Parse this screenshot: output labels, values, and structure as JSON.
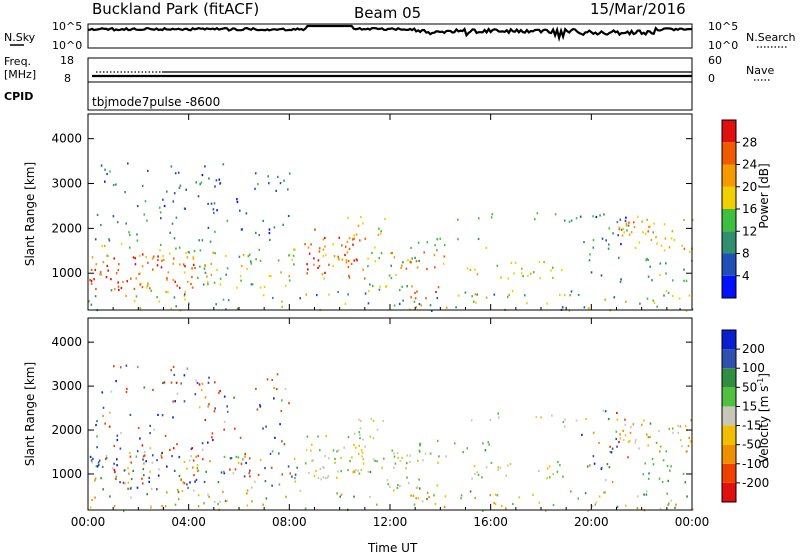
{
  "header": {
    "station": "Buckland Park (fitACF)",
    "beam": "Beam 05",
    "date": "15/Mar/2016"
  },
  "noise_panel": {
    "left_label": "N.Sky",
    "right_label": "N.Search",
    "left_ticks": [
      "10^5",
      "10^0"
    ],
    "right_ticks": [
      "10^5",
      "10^0"
    ]
  },
  "freq_panel": {
    "left_label_1": "Freq.",
    "left_label_2": "[MHz]",
    "right_label": "Nave",
    "left_ticks": [
      "18",
      "8"
    ],
    "right_ticks": [
      "60",
      "0"
    ]
  },
  "cpid": {
    "label": "CPID",
    "value": "tbjmode7pulse  -8600"
  },
  "colors": {
    "power": [
      "#0010ff",
      "#1f4fb8",
      "#2f8f6f",
      "#3fbf3f",
      "#f0d000",
      "#f59a00",
      "#f05a00",
      "#e01010"
    ],
    "velocity": [
      "#0a20d0",
      "#3050b0",
      "#2f8f3f",
      "#50c040",
      "#c8c8b8",
      "#f0c000",
      "#f09000",
      "#f04000",
      "#e01010"
    ]
  },
  "chart_data": [
    {
      "type": "heatmap",
      "name": "power",
      "xlabel": "",
      "ylabel": "Slant Range [km]",
      "xlim": [
        "00:00",
        "24:00"
      ],
      "ylim": [
        180,
        4550
      ],
      "yticks": [
        "1000",
        "2000",
        "3000",
        "4000"
      ],
      "xticks": [
        "00:00",
        "04:00",
        "08:00",
        "12:00",
        "16:00",
        "20:00",
        "00:00"
      ],
      "colorbar": {
        "label": "Power [dB]",
        "ticks": [
          "28",
          "24",
          "20",
          "16",
          "12",
          "8",
          "4"
        ],
        "range": [
          0,
          30
        ]
      }
    },
    {
      "type": "heatmap",
      "name": "velocity",
      "xlabel": "Time UT",
      "ylabel": "Slant Range [km]",
      "xlim": [
        "00:00",
        "24:00"
      ],
      "ylim": [
        180,
        4550
      ],
      "yticks": [
        "1000",
        "2000",
        "3000",
        "4000"
      ],
      "xticks": [
        "00:00",
        "04:00",
        "08:00",
        "12:00",
        "16:00",
        "20:00",
        "00:00"
      ],
      "colorbar": {
        "label": "Velocity [m s",
        "label_sup": "-1",
        "label_end": "]",
        "ticks": [
          "200",
          "100",
          "50",
          "15",
          "-15",
          "-50",
          "-100",
          "-200"
        ],
        "range": [
          -250,
          250
        ]
      }
    }
  ]
}
